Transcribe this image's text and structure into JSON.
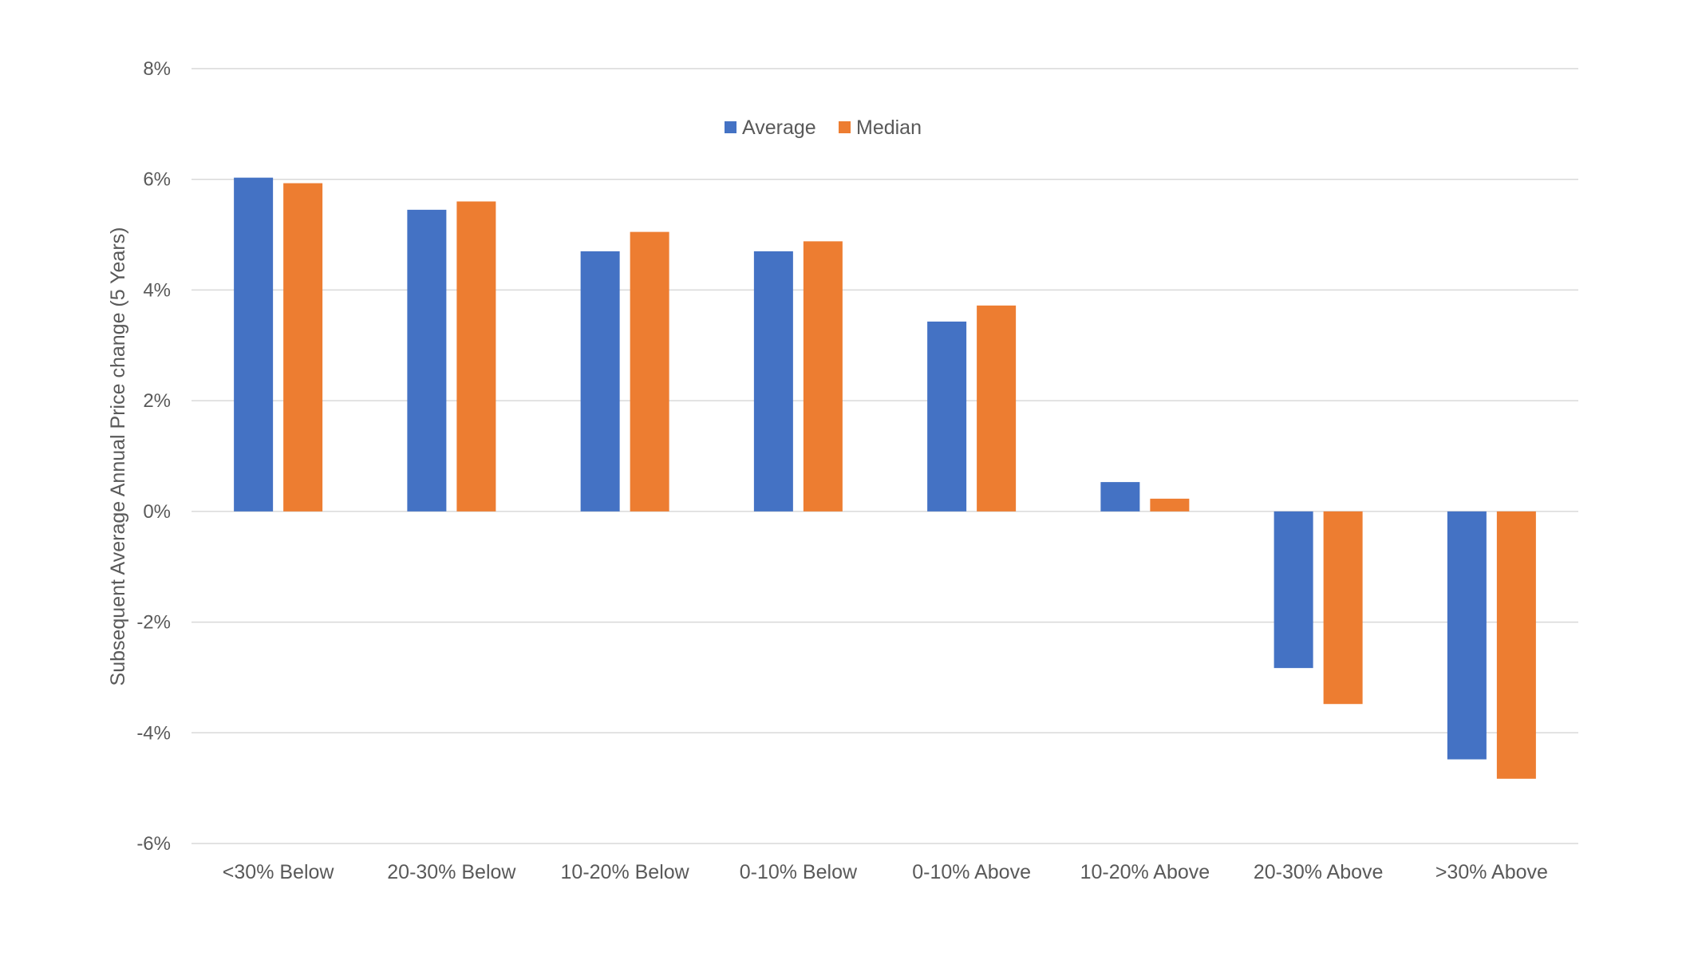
{
  "chart_data": {
    "type": "bar",
    "title": "",
    "xlabel": "",
    "ylabel": "Subsequent Average Annual Price change (5 Years)",
    "ylim": [
      -6,
      8
    ],
    "yticks": [
      8,
      6,
      4,
      2,
      0,
      -2,
      -4,
      -6
    ],
    "ytick_labels": [
      "8%",
      "6%",
      "4%",
      "2%",
      "0%",
      "-2%",
      "-4%",
      "-6%"
    ],
    "grid": true,
    "legend_position": "top-center",
    "categories": [
      "<30% Below",
      "20-30% Below",
      "10-20% Below",
      "0-10% Below",
      "0-10% Above",
      "10-20% Above",
      "20-30% Above",
      ">30% Above"
    ],
    "series": [
      {
        "name": "Average",
        "color": "#4472C4",
        "values": [
          6.03,
          5.45,
          4.7,
          4.7,
          3.43,
          0.53,
          -2.83,
          -4.48
        ]
      },
      {
        "name": "Median",
        "color": "#ED7D31",
        "values": [
          5.93,
          5.6,
          5.05,
          4.88,
          3.72,
          0.23,
          -3.48,
          -4.83
        ]
      }
    ]
  }
}
